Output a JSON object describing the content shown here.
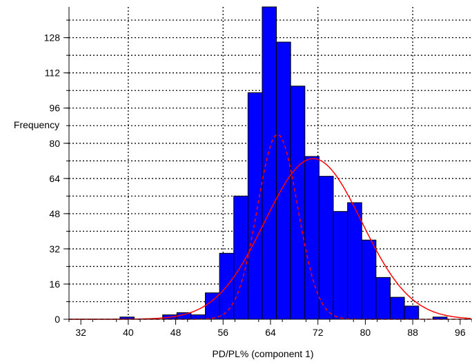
{
  "chart_data": {
    "type": "bar",
    "xlabel": "PD/PL% (component 1)",
    "ylabel": "Frequency",
    "xlim": [
      30,
      98
    ],
    "ylim": [
      0,
      142
    ],
    "x_ticks": [
      32,
      40,
      48,
      56,
      64,
      72,
      80,
      88,
      96
    ],
    "y_ticks": [
      0,
      16,
      32,
      48,
      64,
      80,
      96,
      112,
      128
    ],
    "grid": true,
    "bar_color": "#0000ff",
    "fit_color": "#ff0000",
    "bin_width": 2.4,
    "bins": [
      {
        "x": 39.8,
        "value": 1
      },
      {
        "x": 42.2,
        "value": 0
      },
      {
        "x": 44.6,
        "value": 0
      },
      {
        "x": 47.0,
        "value": 2
      },
      {
        "x": 49.4,
        "value": 3
      },
      {
        "x": 51.8,
        "value": 2
      },
      {
        "x": 54.2,
        "value": 12
      },
      {
        "x": 56.6,
        "value": 30
      },
      {
        "x": 59.0,
        "value": 56
      },
      {
        "x": 61.4,
        "value": 103
      },
      {
        "x": 63.8,
        "value": 142
      },
      {
        "x": 66.2,
        "value": 126
      },
      {
        "x": 68.6,
        "value": 106
      },
      {
        "x": 71.0,
        "value": 74
      },
      {
        "x": 73.4,
        "value": 65
      },
      {
        "x": 75.8,
        "value": 49
      },
      {
        "x": 78.2,
        "value": 53
      },
      {
        "x": 80.6,
        "value": 36
      },
      {
        "x": 83.0,
        "value": 19
      },
      {
        "x": 85.4,
        "value": 10
      },
      {
        "x": 87.8,
        "value": 6
      },
      {
        "x": 90.2,
        "value": 0
      },
      {
        "x": 92.6,
        "value": 1
      }
    ],
    "fits": [
      {
        "style": "solid",
        "mean": 71.2,
        "sd": 8.2,
        "peak": 73
      },
      {
        "style": "dashed",
        "mean": 65.2,
        "sd": 3.4,
        "peak": 84
      }
    ]
  }
}
